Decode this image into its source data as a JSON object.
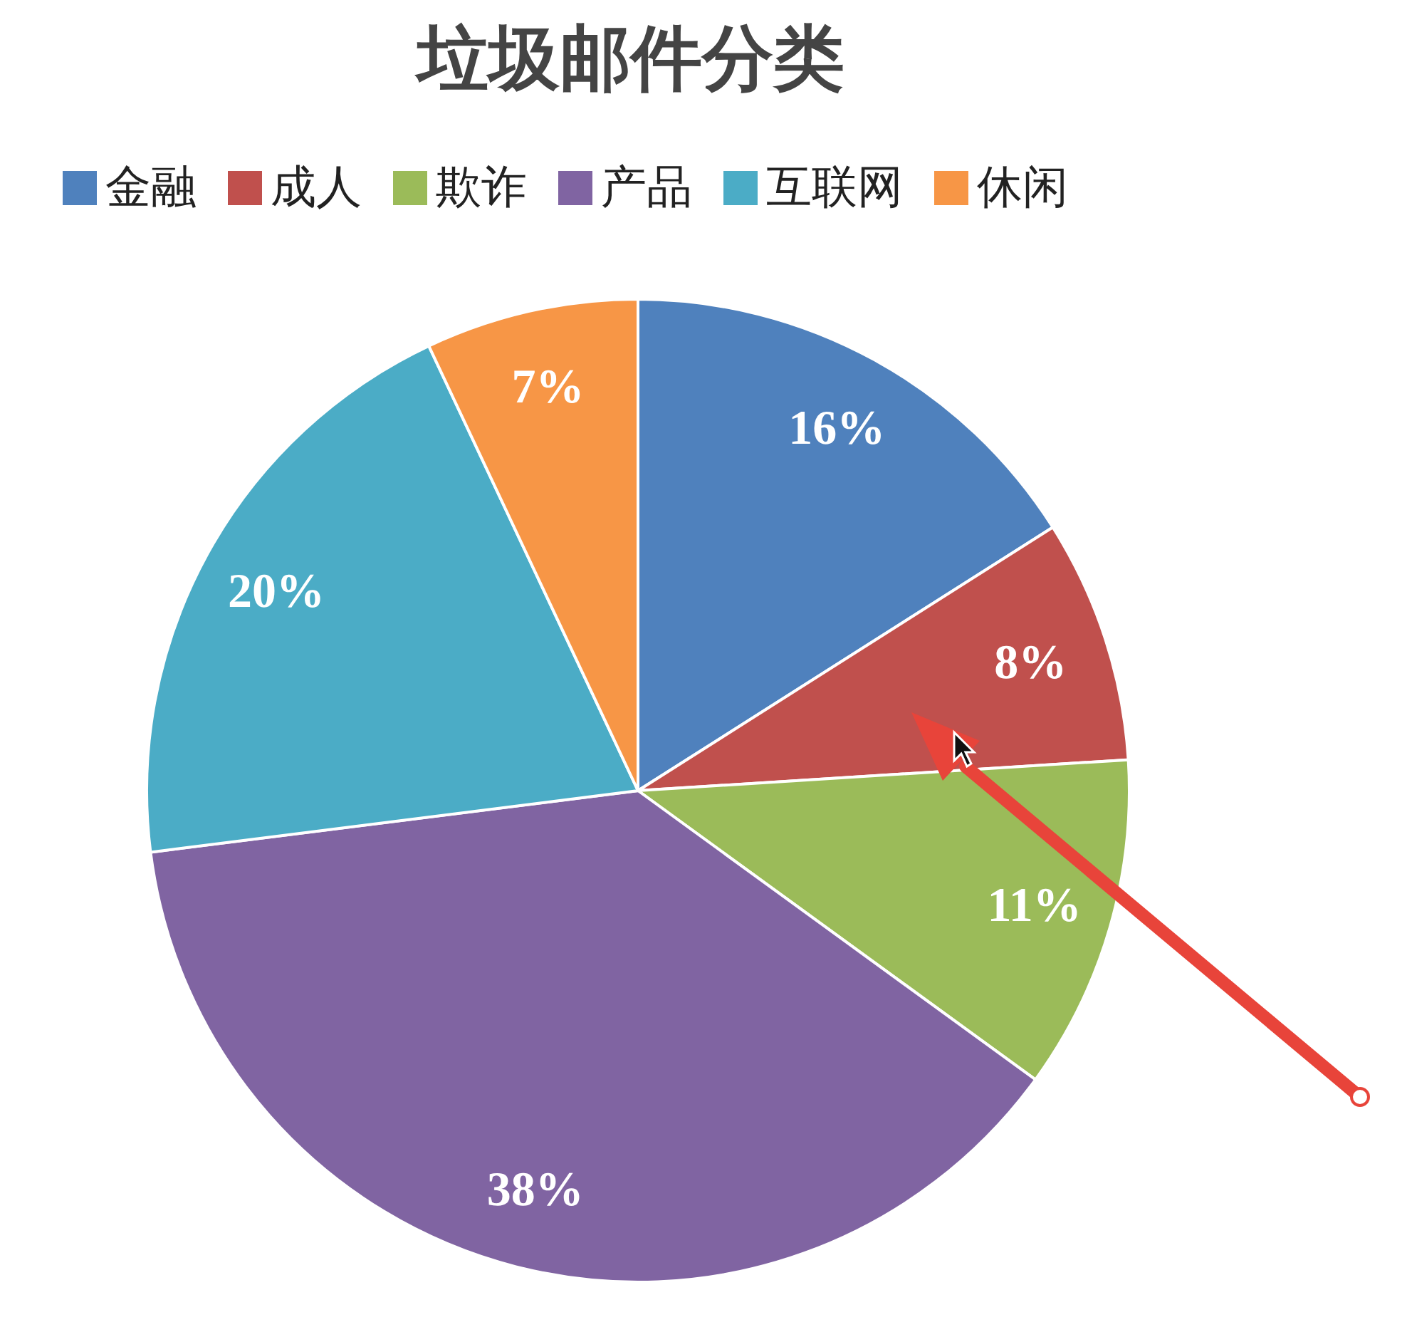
{
  "chart_data": {
    "type": "pie",
    "title": "垃圾邮件分类",
    "categories": [
      "金融",
      "成人",
      "欺诈",
      "产品",
      "互联网",
      "休闲"
    ],
    "values": [
      16,
      8,
      11,
      38,
      20,
      7
    ],
    "colors": [
      "#4f81bd",
      "#c0504d",
      "#9bbb59",
      "#8064a2",
      "#4bacc6",
      "#f79646"
    ],
    "value_labels": [
      "16%",
      "8%",
      "11%",
      "38%",
      "20%",
      "7%"
    ],
    "legend": "top"
  }
}
